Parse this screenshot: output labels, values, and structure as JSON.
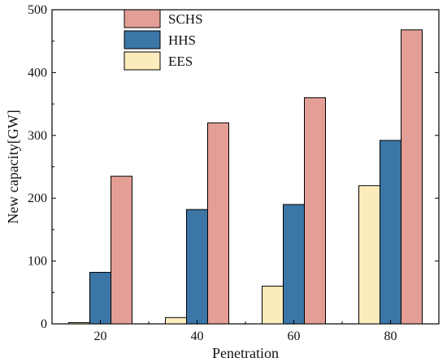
{
  "chart_data": {
    "type": "bar",
    "title": "",
    "xlabel": "Penetration",
    "ylabel": "New capacity[GW]",
    "categories": [
      "20",
      "40",
      "60",
      "80"
    ],
    "series": [
      {
        "name": "EES",
        "color": "#fcebbd",
        "values": [
          2,
          10,
          60,
          220
        ]
      },
      {
        "name": "HHS",
        "color": "#3b76a6",
        "values": [
          82,
          182,
          190,
          292
        ]
      },
      {
        "name": "SCHS",
        "color": "#e39e95",
        "values": [
          235,
          320,
          360,
          468
        ]
      }
    ],
    "legend_order": [
      "SCHS",
      "HHS",
      "EES"
    ],
    "legend_position": "top-left",
    "ylim": [
      0,
      500
    ],
    "yticks": [
      0,
      100,
      200,
      300,
      400,
      500
    ],
    "grid": false
  }
}
